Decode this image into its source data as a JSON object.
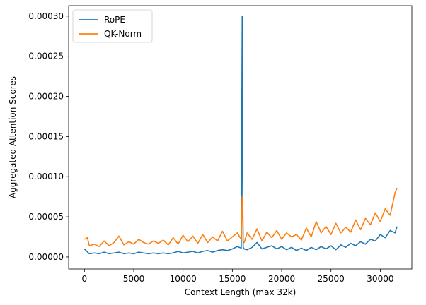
{
  "chart_data": {
    "type": "line",
    "title": "",
    "xlabel": "Context Length (max 32k)",
    "ylabel": "Aggregated Attention Scores",
    "xlim": [
      -1600,
      33200
    ],
    "ylim": [
      -1.5e-05,
      0.000313
    ],
    "xticks": [
      0,
      5000,
      10000,
      15000,
      20000,
      25000,
      30000
    ],
    "xtick_labels": [
      "0",
      "5000",
      "10000",
      "15000",
      "20000",
      "25000",
      "30000"
    ],
    "yticks": [
      0.0,
      5e-05,
      0.0001,
      0.00015,
      0.0002,
      0.00025,
      0.0003
    ],
    "ytick_labels": [
      "0.00000",
      "0.00005",
      "0.00010",
      "0.00015",
      "0.00020",
      "0.00025",
      "0.00030"
    ],
    "grid": false,
    "legend_position": "top-left",
    "series": [
      {
        "name": "RoPE",
        "color": "#1f77b4",
        "x": [
          0,
          500,
          1000,
          1500,
          2000,
          2500,
          3000,
          3500,
          4000,
          4500,
          5000,
          5500,
          6000,
          6500,
          7000,
          7500,
          8000,
          8500,
          9000,
          9500,
          10000,
          10500,
          11000,
          11500,
          12000,
          12500,
          13000,
          13500,
          14000,
          14500,
          15000,
          15500,
          15900,
          16000,
          16050,
          16100,
          16200,
          16500,
          17000,
          17500,
          18000,
          18500,
          19000,
          19500,
          20000,
          20500,
          21000,
          21500,
          22000,
          22500,
          23000,
          23500,
          24000,
          24500,
          25000,
          25500,
          26000,
          26500,
          27000,
          27500,
          28000,
          28500,
          29000,
          29500,
          30000,
          30500,
          31000,
          31500,
          31700
        ],
        "values": [
          1e-05,
          4e-06,
          5e-06,
          4e-06,
          6e-06,
          4e-06,
          5e-06,
          6e-06,
          4e-06,
          5e-06,
          4e-06,
          6e-06,
          5e-06,
          4e-06,
          5e-06,
          4e-06,
          5e-06,
          4e-06,
          5e-06,
          7e-06,
          5e-06,
          6e-06,
          7e-06,
          5e-06,
          7e-06,
          8e-06,
          6e-06,
          8e-06,
          9e-06,
          8e-06,
          1e-05,
          1.3e-05,
          1.1e-05,
          0.0003,
          8e-05,
          1.2e-05,
          1e-05,
          9e-06,
          1.2e-05,
          1.8e-05,
          1e-05,
          1.2e-05,
          1.4e-05,
          1e-05,
          1.3e-05,
          9e-06,
          1.2e-05,
          8e-06,
          1.1e-05,
          8e-06,
          1.2e-05,
          9e-06,
          1.3e-05,
          1e-05,
          1.4e-05,
          9e-06,
          1.5e-05,
          1.2e-05,
          1.7e-05,
          1.4e-05,
          1.9e-05,
          1.6e-05,
          2.2e-05,
          2e-05,
          2.8e-05,
          2.4e-05,
          3.3e-05,
          3e-05,
          3.8e-05
        ]
      },
      {
        "name": "QK-Norm",
        "color": "#ff7f0e",
        "x": [
          0,
          300,
          500,
          1000,
          1500,
          2000,
          2500,
          3000,
          3500,
          4000,
          4500,
          5000,
          5500,
          6000,
          6500,
          7000,
          7500,
          8000,
          8500,
          9000,
          9500,
          10000,
          10500,
          11000,
          11500,
          12000,
          12500,
          13000,
          13500,
          14000,
          14500,
          15000,
          15500,
          15900,
          16000,
          16050,
          16100,
          16200,
          16500,
          17000,
          17500,
          18000,
          18500,
          19000,
          19500,
          20000,
          20500,
          21000,
          21500,
          22000,
          22500,
          23000,
          23500,
          24000,
          24500,
          25000,
          25500,
          26000,
          26500,
          27000,
          27500,
          28000,
          28500,
          29000,
          29500,
          30000,
          30500,
          31000,
          31500,
          31700
        ],
        "values": [
          2.2e-05,
          2.4e-05,
          1.4e-05,
          1.6e-05,
          1.3e-05,
          2e-05,
          1.4e-05,
          1.8e-05,
          2.6e-05,
          1.5e-05,
          1.9e-05,
          1.6e-05,
          2.2e-05,
          1.8e-05,
          1.6e-05,
          2e-05,
          1.7e-05,
          2.1e-05,
          1.5e-05,
          2.4e-05,
          1.6e-05,
          2.7e-05,
          1.9e-05,
          2.6e-05,
          1.7e-05,
          2.8e-05,
          1.8e-05,
          2.5e-05,
          2e-05,
          3.2e-05,
          2e-05,
          2.5e-05,
          3e-05,
          2.2e-05,
          7.5e-05,
          6e-05,
          2e-05,
          1.8e-05,
          3e-05,
          2.2e-05,
          3.5e-05,
          2e-05,
          3.1e-05,
          2.4e-05,
          3.3e-05,
          2.2e-05,
          3e-05,
          2.5e-05,
          2.8e-05,
          2.1e-05,
          3.6e-05,
          2.5e-05,
          4.4e-05,
          3e-05,
          3.8e-05,
          2.8e-05,
          4.2e-05,
          3e-05,
          3.7e-05,
          3.1e-05,
          4.6e-05,
          3.4e-05,
          4.8e-05,
          4e-05,
          5.5e-05,
          4.4e-05,
          6e-05,
          5.2e-05,
          8e-05,
          8.6e-05
        ]
      }
    ]
  }
}
